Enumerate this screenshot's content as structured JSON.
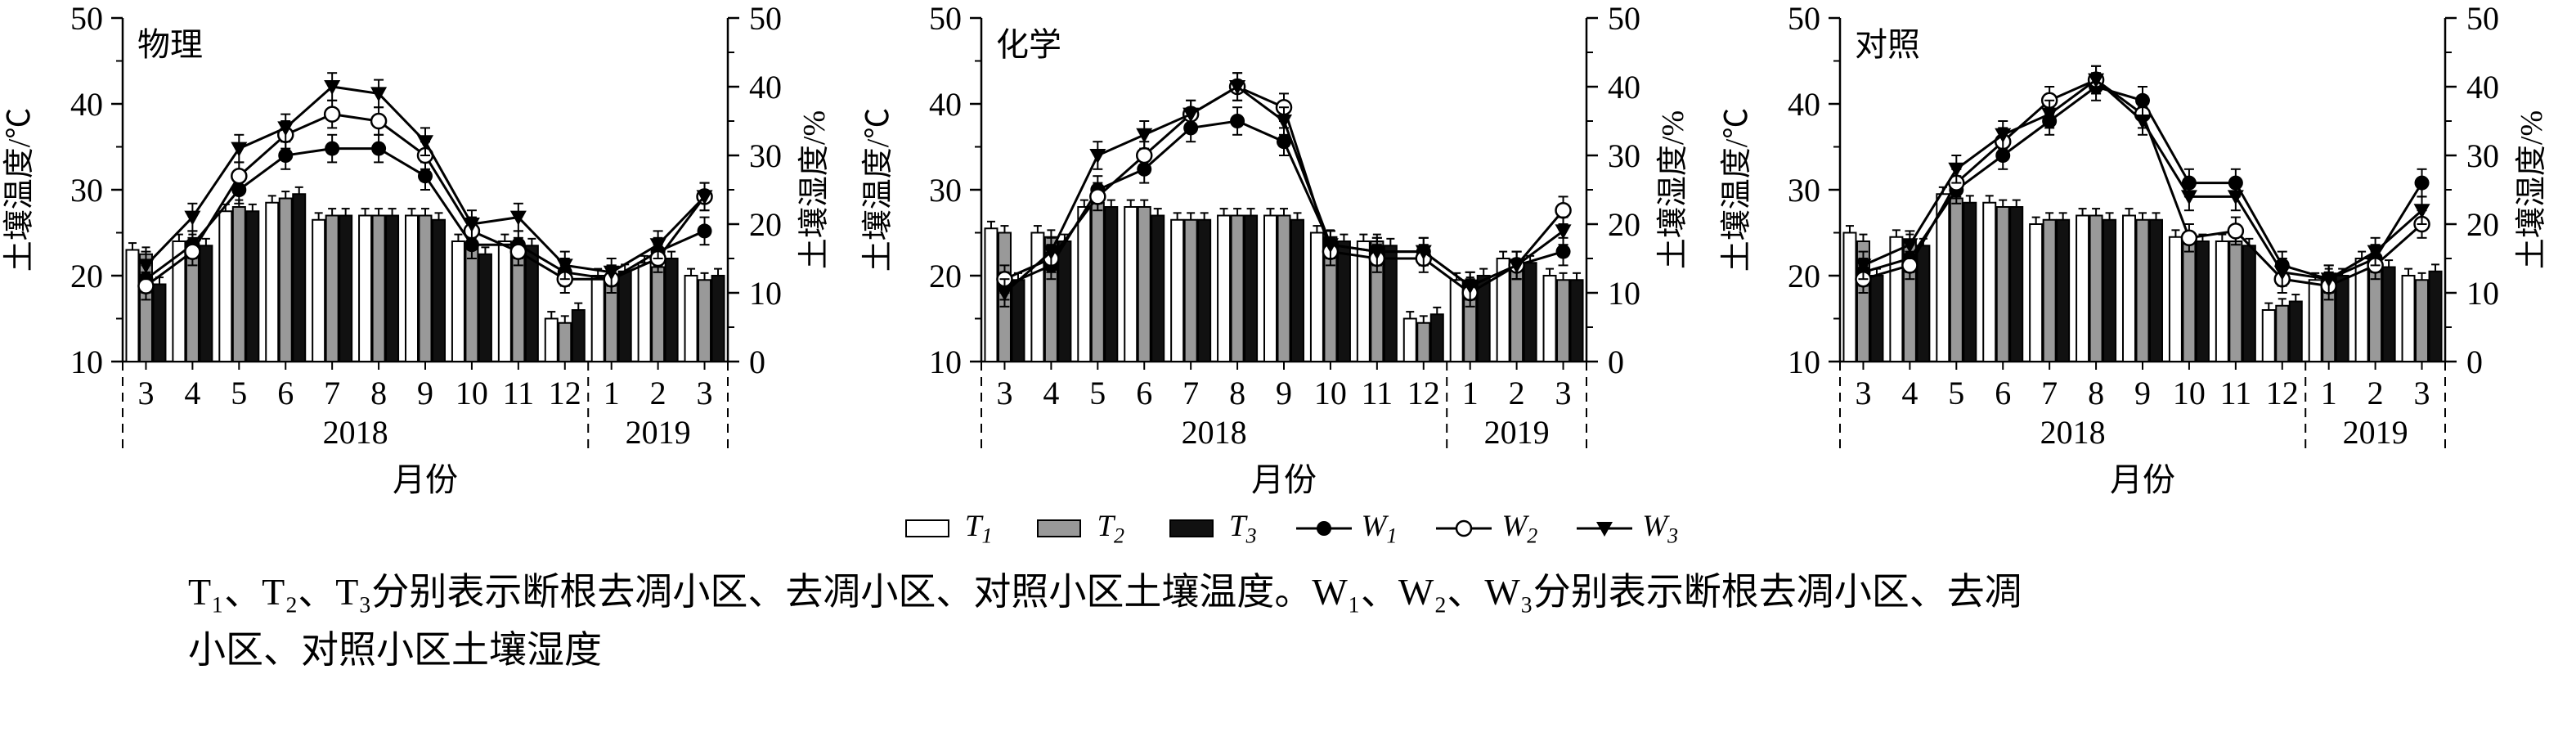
{
  "caption": {
    "line1": "T₁、T₂、T₃分别表示断根去凋小区、去凋小区、对照小区土壤温度。W₁、W₂、W₃分别表示断根去凋小区、去凋",
    "line2": "小区、对照小区土壤湿度"
  },
  "legend": {
    "items": [
      {
        "name": "T1",
        "kind": "bar",
        "label_base": "T",
        "label_sub": "1",
        "fill": "#ffffff"
      },
      {
        "name": "T2",
        "kind": "bar",
        "label_base": "T",
        "label_sub": "2",
        "fill": "#999999"
      },
      {
        "name": "T3",
        "kind": "bar",
        "label_base": "T",
        "label_sub": "3",
        "fill": "#111111"
      },
      {
        "name": "W1",
        "kind": "line",
        "label_base": "W",
        "label_sub": "1",
        "marker": "circle-filled"
      },
      {
        "name": "W2",
        "kind": "line",
        "label_base": "W",
        "label_sub": "2",
        "marker": "circle-open"
      },
      {
        "name": "W3",
        "kind": "line",
        "label_base": "W",
        "label_sub": "3",
        "marker": "triangle-down"
      }
    ]
  },
  "chart_data": [
    {
      "type": "bar+line",
      "title": "物理",
      "categories": [
        "3",
        "4",
        "5",
        "6",
        "7",
        "8",
        "9",
        "10",
        "11",
        "12",
        "1",
        "2",
        "3"
      ],
      "year_groups": [
        {
          "label": "2018",
          "from": 0,
          "to": 9
        },
        {
          "label": "2019",
          "from": 10,
          "to": 12
        }
      ],
      "xlabel": "月份",
      "left_axis": {
        "label": "土壤温度/℃",
        "min": 10,
        "max": 50,
        "ticks": [
          10,
          20,
          30,
          40,
          50
        ]
      },
      "right_axis": {
        "label": "土壤湿度/%",
        "min": 0,
        "max": 50,
        "ticks": [
          0,
          10,
          20,
          30,
          40,
          50
        ]
      },
      "bar_series": [
        {
          "name": "T1",
          "fill": "#ffffff",
          "error": 0.8,
          "values": [
            23,
            24,
            27.5,
            28.5,
            26.5,
            27,
            27,
            24,
            24,
            15,
            20,
            21.5,
            20
          ]
        },
        {
          "name": "T2",
          "fill": "#999999",
          "error": 0.8,
          "values": [
            22.5,
            24,
            28,
            29,
            27,
            27,
            27,
            23.5,
            23.5,
            14.5,
            20,
            21,
            19.5
          ]
        },
        {
          "name": "T3",
          "fill": "#111111",
          "error": 0.8,
          "values": [
            19,
            23.5,
            27.5,
            29.5,
            27,
            27,
            26.5,
            22.5,
            23.5,
            16,
            20.5,
            22,
            20
          ]
        }
      ],
      "line_series": [
        {
          "name": "W1",
          "marker": "circle-filled",
          "error": 2,
          "values": [
            12,
            17,
            25,
            30,
            31,
            31,
            27,
            17,
            17,
            13,
            12,
            16,
            19
          ]
        },
        {
          "name": "W2",
          "marker": "circle-open",
          "error": 2,
          "values": [
            11,
            16,
            27,
            33,
            36,
            35,
            30,
            19,
            16,
            12,
            12,
            15,
            24
          ]
        },
        {
          "name": "W3",
          "marker": "triangle-down",
          "error": 2,
          "values": [
            14,
            21,
            31,
            34,
            40,
            39,
            32,
            20,
            21,
            14,
            13,
            17,
            24
          ]
        }
      ]
    },
    {
      "type": "bar+line",
      "title": "化学",
      "categories": [
        "3",
        "4",
        "5",
        "6",
        "7",
        "8",
        "9",
        "10",
        "11",
        "12",
        "1",
        "2",
        "3"
      ],
      "year_groups": [
        {
          "label": "2018",
          "from": 0,
          "to": 9
        },
        {
          "label": "2019",
          "from": 10,
          "to": 12
        }
      ],
      "xlabel": "月份",
      "left_axis": {
        "label": "土壤温度/℃",
        "min": 10,
        "max": 50,
        "ticks": [
          10,
          20,
          30,
          40,
          50
        ]
      },
      "right_axis": {
        "label": "土壤湿度/%",
        "min": 0,
        "max": 50,
        "ticks": [
          0,
          10,
          20,
          30,
          40,
          50
        ]
      },
      "bar_series": [
        {
          "name": "T1",
          "fill": "#ffffff",
          "error": 0.8,
          "values": [
            25.5,
            25,
            28,
            28,
            26.5,
            27,
            27,
            25,
            24,
            15,
            19.5,
            22,
            20
          ]
        },
        {
          "name": "T2",
          "fill": "#999999",
          "error": 0.8,
          "values": [
            25,
            24.5,
            28.5,
            28,
            26.5,
            27,
            27,
            24.5,
            24,
            14.5,
            19,
            21,
            19.5
          ]
        },
        {
          "name": "T3",
          "fill": "#111111",
          "error": 0.8,
          "values": [
            19.5,
            24,
            28,
            27,
            26.5,
            27,
            26.5,
            24,
            23.5,
            15.5,
            20,
            21.5,
            19.5
          ]
        }
      ],
      "line_series": [
        {
          "name": "W1",
          "marker": "circle-filled",
          "error": 2,
          "values": [
            11,
            14,
            25,
            28,
            34,
            35,
            32,
            17,
            16,
            16,
            11,
            14,
            16
          ]
        },
        {
          "name": "W2",
          "marker": "circle-open",
          "error": 2,
          "values": [
            12,
            15,
            24,
            30,
            36,
            40,
            37,
            16,
            15,
            15,
            10,
            14,
            22
          ]
        },
        {
          "name": "W3",
          "marker": "triangle-down",
          "error": 2,
          "values": [
            10,
            16,
            30,
            33,
            36,
            40,
            35,
            17,
            16,
            16,
            11,
            14,
            19
          ]
        }
      ]
    },
    {
      "type": "bar+line",
      "title": "对照",
      "categories": [
        "3",
        "4",
        "5",
        "6",
        "7",
        "8",
        "9",
        "10",
        "11",
        "12",
        "1",
        "2",
        "3"
      ],
      "year_groups": [
        {
          "label": "2018",
          "from": 0,
          "to": 9
        },
        {
          "label": "2019",
          "from": 10,
          "to": 12
        }
      ],
      "xlabel": "月份",
      "left_axis": {
        "label": "土壤温度/℃",
        "min": 10,
        "max": 50,
        "ticks": [
          10,
          20,
          30,
          40,
          50
        ]
      },
      "right_axis": {
        "label": "土壤湿度/%",
        "min": 0,
        "max": 50,
        "ticks": [
          0,
          10,
          20,
          30,
          40,
          50
        ]
      },
      "bar_series": [
        {
          "name": "T1",
          "fill": "#ffffff",
          "error": 0.8,
          "values": [
            25,
            24.5,
            29.5,
            28.5,
            26,
            27,
            27,
            24.5,
            24,
            16,
            19.5,
            22,
            20
          ]
        },
        {
          "name": "T2",
          "fill": "#999999",
          "error": 0.8,
          "values": [
            24,
            24,
            29,
            28,
            26.5,
            27,
            26.5,
            24,
            24,
            16.5,
            20,
            21.5,
            19.5
          ]
        },
        {
          "name": "T3",
          "fill": "#111111",
          "error": 0.8,
          "values": [
            20,
            23.5,
            28.5,
            28,
            26.5,
            26.5,
            26.5,
            24,
            23.5,
            17,
            20,
            21,
            20.5
          ]
        }
      ],
      "line_series": [
        {
          "name": "W1",
          "marker": "circle-filled",
          "error": 2,
          "values": [
            13,
            15,
            25,
            30,
            35,
            40,
            38,
            26,
            26,
            14,
            12,
            15,
            26
          ]
        },
        {
          "name": "W2",
          "marker": "circle-open",
          "error": 2,
          "values": [
            12,
            14,
            26,
            32,
            38,
            41,
            36,
            18,
            19,
            12,
            11,
            14,
            20
          ]
        },
        {
          "name": "W3",
          "marker": "triangle-down",
          "error": 2,
          "values": [
            14,
            17,
            28,
            33,
            36,
            41,
            35,
            24,
            24,
            13,
            12,
            16,
            22
          ]
        }
      ]
    }
  ]
}
